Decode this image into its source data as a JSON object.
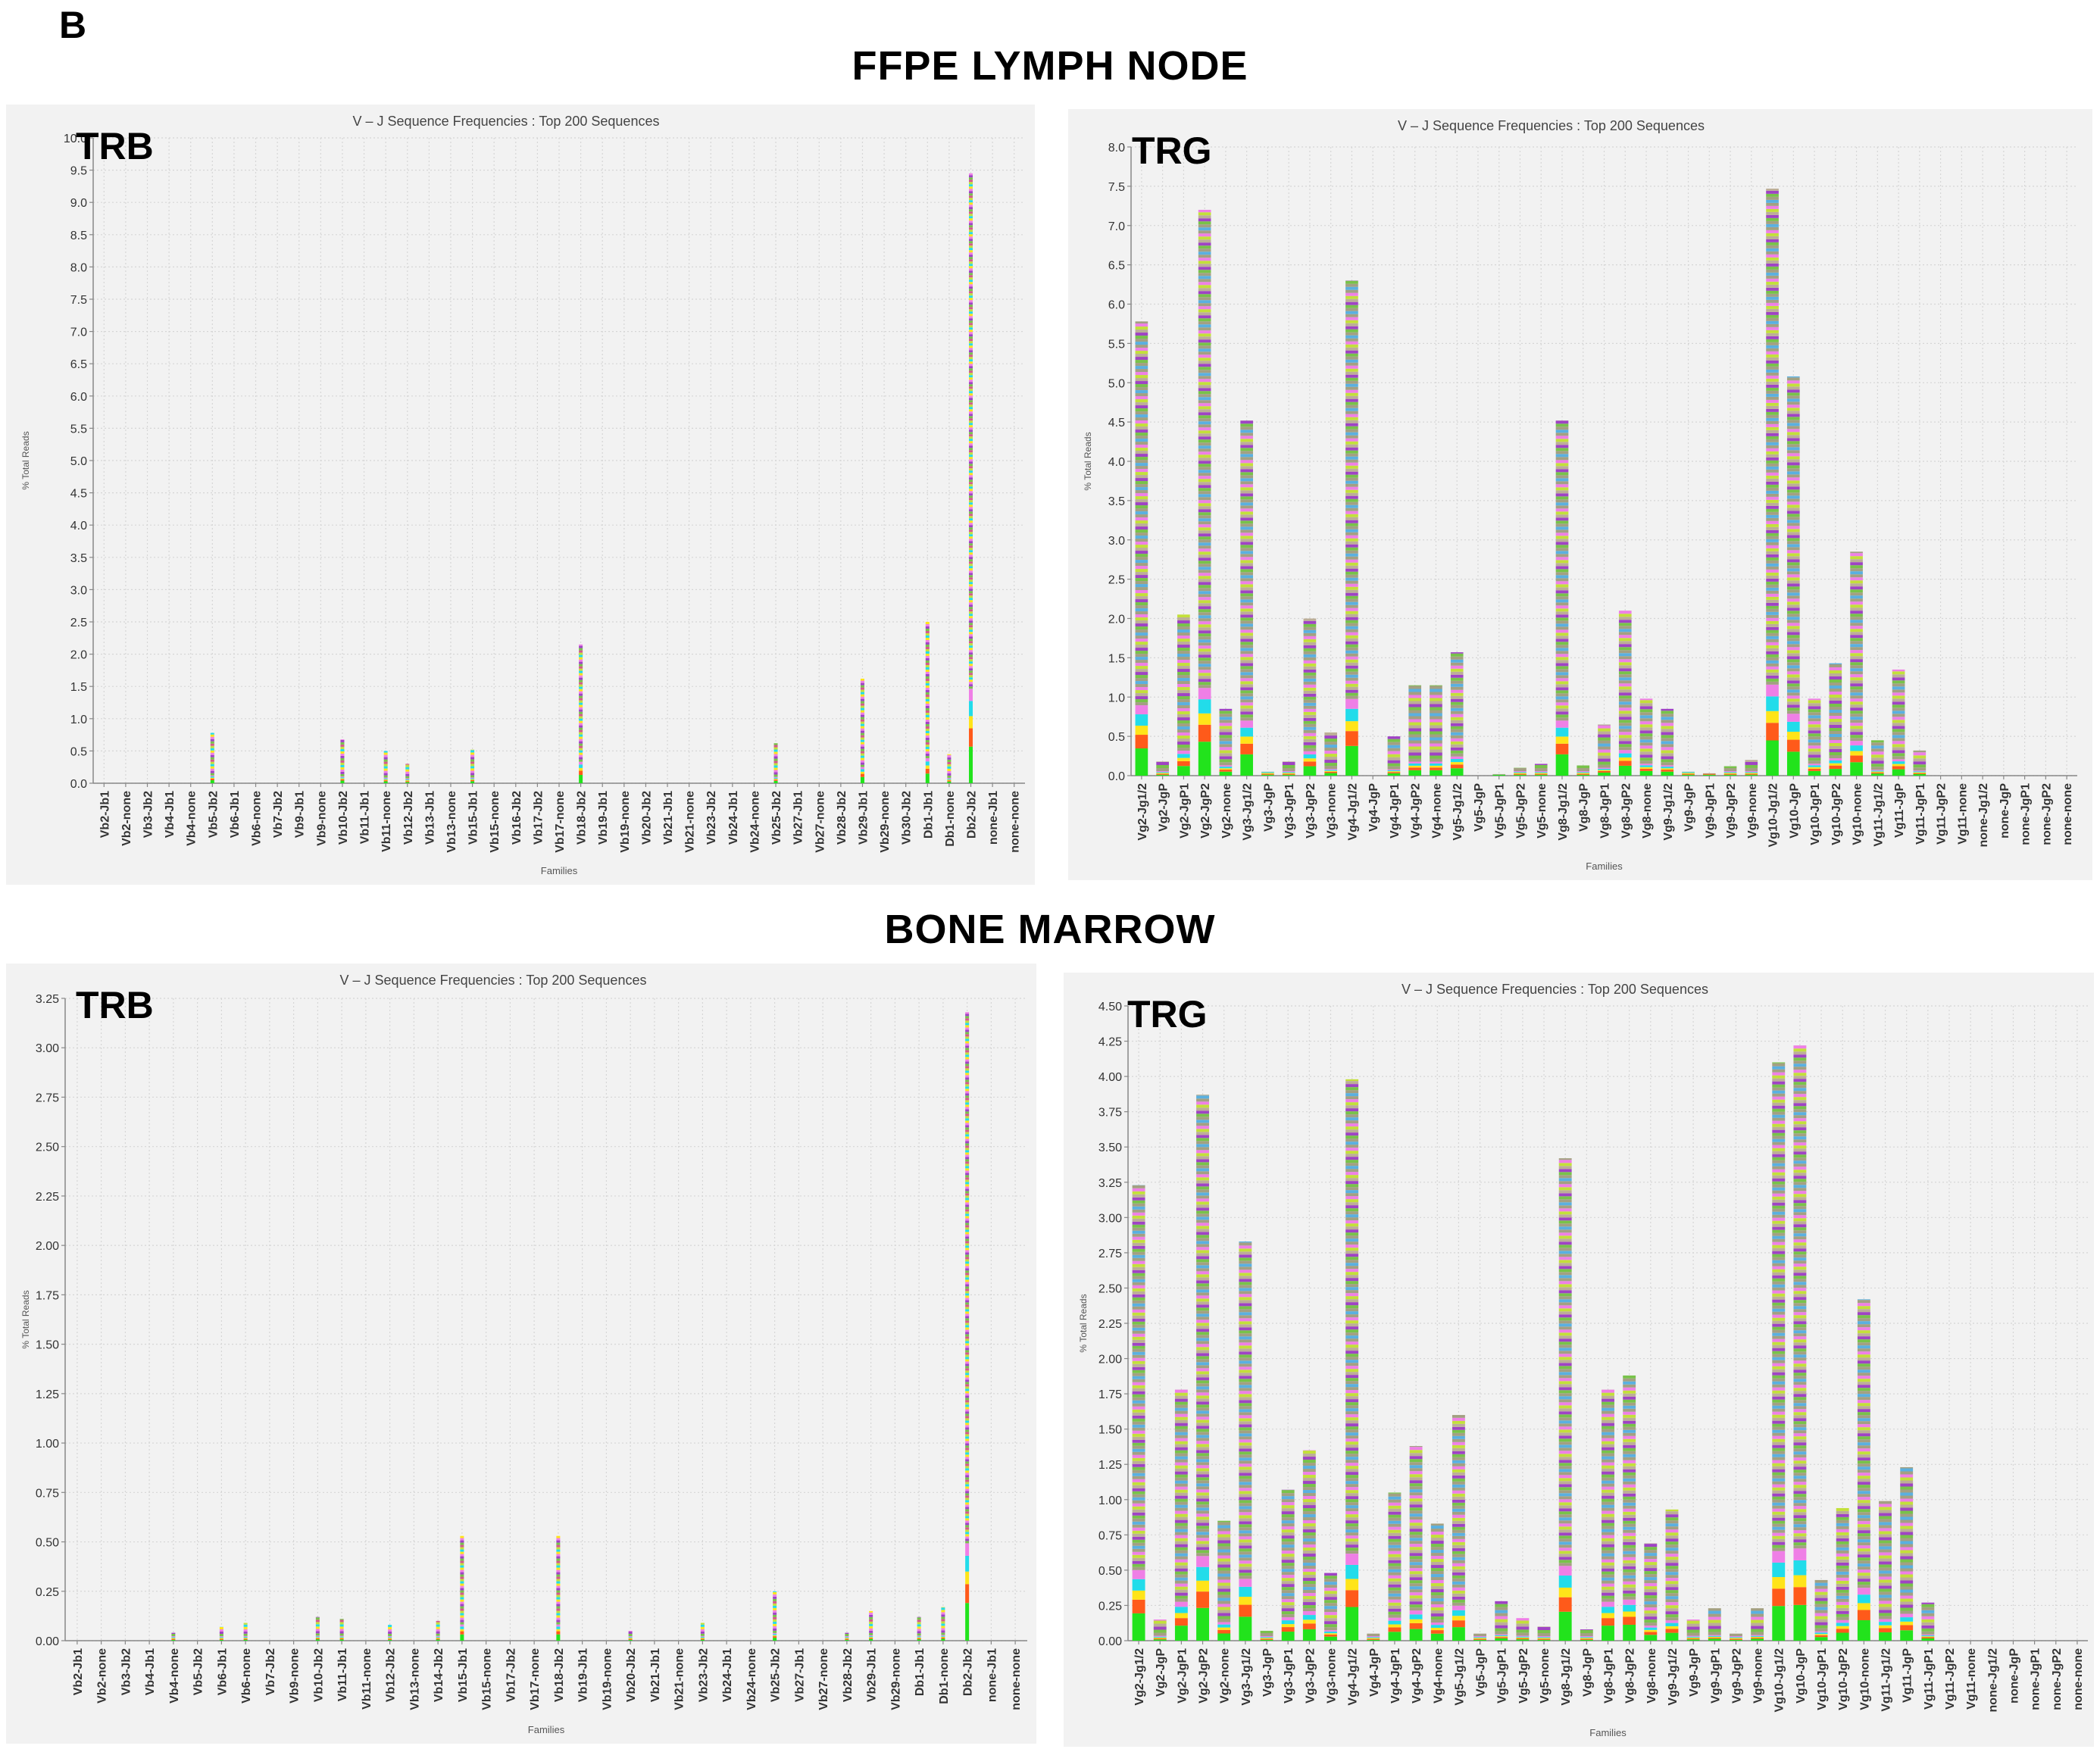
{
  "figure": {
    "label": "B",
    "sections": [
      "FFPE LYMPH NODE",
      "BONE MARROW"
    ]
  },
  "colors": {
    "panel_bg": "#f2f2f2",
    "grid": "#d6d6d6",
    "stack_palette": [
      "#22e31c",
      "#ff5a1a",
      "#ffe419",
      "#22dcea",
      "#ef7fe6",
      "#9f43c4",
      "#78c24a",
      "#c3e03a",
      "#a3a082",
      "#bcae98",
      "#d45a8a",
      "#5ab0e0"
    ]
  },
  "chart_data": [
    {
      "type": "bar",
      "stacked": true,
      "tag": "TRB",
      "title": "V – J Sequence Frequencies : Top 200 Sequences",
      "xlabel": "Families",
      "ylabel": "% Total Reads",
      "ylim": [
        0,
        10.0
      ],
      "yticks": [
        "0.0",
        "0.5",
        "1.0",
        "1.5",
        "2.0",
        "2.5",
        "3.0",
        "3.5",
        "4.0",
        "4.5",
        "5.0",
        "5.5",
        "6.0",
        "6.5",
        "7.0",
        "7.5",
        "8.0",
        "8.5",
        "9.0",
        "9.5",
        "10.0"
      ],
      "bar_style": "thin",
      "categories": [
        "Vb2-Jb1",
        "Vb2-none",
        "Vb3-Jb2",
        "Vb4-Jb1",
        "Vb4-none",
        "Vb5-Jb2",
        "Vb6-Jb1",
        "Vb6-none",
        "Vb7-Jb2",
        "Vb9-Jb1",
        "Vb9-none",
        "Vb10-Jb2",
        "Vb11-Jb1",
        "Vb11-none",
        "Vb12-Jb2",
        "Vb13-Jb1",
        "Vb13-none",
        "Vb15-Jb1",
        "Vb15-none",
        "Vb16-Jb2",
        "Vb17-Jb2",
        "Vb17-none",
        "Vb18-Jb2",
        "Vb19-Jb1",
        "Vb19-none",
        "Vb20-Jb2",
        "Vb21-Jb1",
        "Vb21-none",
        "Vb23-Jb2",
        "Vb24-Jb1",
        "Vb24-none",
        "Vb25-Jb2",
        "Vb27-Jb1",
        "Vb27-none",
        "Vb28-Jb2",
        "Vb29-Jb1",
        "Vb29-none",
        "Vb30-Jb2",
        "Db1-Jb1",
        "Db1-none",
        "Db2-Jb2",
        "none-Jb1",
        "none-none"
      ],
      "values": [
        0,
        0,
        0,
        0,
        0,
        0.78,
        0,
        0,
        0,
        0,
        0,
        0.68,
        0,
        0.5,
        0.3,
        0,
        0,
        0.52,
        0,
        0,
        0,
        0,
        2.15,
        0,
        0,
        0,
        0,
        0,
        0,
        0,
        0,
        0.62,
        0,
        0,
        0,
        1.62,
        0,
        0,
        2.5,
        0.45,
        9.45,
        0,
        0
      ]
    },
    {
      "type": "bar",
      "stacked": true,
      "tag": "TRG",
      "title": "V – J Sequence Frequencies : Top 200 Sequences",
      "xlabel": "Families",
      "ylabel": "% Total Reads",
      "ylim": [
        0,
        8.0
      ],
      "yticks": [
        "0.0",
        "0.5",
        "1.0",
        "1.5",
        "2.0",
        "2.5",
        "3.0",
        "3.5",
        "4.0",
        "4.5",
        "5.0",
        "5.5",
        "6.0",
        "6.5",
        "7.0",
        "7.5",
        "8.0"
      ],
      "bar_style": "wide",
      "categories": [
        "Vg2-Jg1/2",
        "Vg2-JgP",
        "Vg2-JgP1",
        "Vg2-JgP2",
        "Vg2-none",
        "Vg3-Jg1/2",
        "Vg3-JgP",
        "Vg3-JgP1",
        "Vg3-JgP2",
        "Vg3-none",
        "Vg4-Jg1/2",
        "Vg4-JgP",
        "Vg4-JgP1",
        "Vg4-JgP2",
        "Vg4-none",
        "Vg5-Jg1/2",
        "Vg5-JgP",
        "Vg5-JgP1",
        "Vg5-JgP2",
        "Vg5-none",
        "Vg8-Jg1/2",
        "Vg8-JgP",
        "Vg8-JgP1",
        "Vg8-JgP2",
        "Vg8-none",
        "Vg9-Jg1/2",
        "Vg9-JgP",
        "Vg9-JgP1",
        "Vg9-JgP2",
        "Vg9-none",
        "Vg10-Jg1/2",
        "Vg10-JgP",
        "Vg10-JgP1",
        "Vg10-JgP2",
        "Vg10-none",
        "Vg11-Jg1/2",
        "Vg11-JgP",
        "Vg11-JgP1",
        "Vg11-JgP2",
        "Vg11-none",
        "none-Jg1/2",
        "none-JgP",
        "none-JgP1",
        "none-JgP2",
        "none-none"
      ],
      "values": [
        5.78,
        0.18,
        2.05,
        7.2,
        0.85,
        4.52,
        0.05,
        0.18,
        2.0,
        0.55,
        6.3,
        0,
        0.5,
        1.15,
        1.15,
        1.57,
        0,
        0.02,
        0.1,
        0.15,
        4.52,
        0.13,
        0.65,
        2.1,
        0.98,
        0.85,
        0.05,
        0.03,
        0.12,
        0.2,
        7.47,
        5.08,
        0.98,
        1.43,
        2.85,
        0.45,
        1.35,
        0.32,
        0,
        0,
        0,
        0,
        0,
        0,
        0
      ]
    },
    {
      "type": "bar",
      "stacked": true,
      "tag": "TRB",
      "title": "V – J Sequence Frequencies : Top 200 Sequences",
      "xlabel": "Families",
      "ylabel": "% Total Reads",
      "ylim": [
        0,
        3.25
      ],
      "yticks": [
        "0.00",
        "0.25",
        "0.50",
        "0.75",
        "1.00",
        "1.25",
        "1.50",
        "1.75",
        "2.00",
        "2.25",
        "2.50",
        "2.75",
        "3.00",
        "3.25"
      ],
      "bar_style": "thin",
      "categories": [
        "Vb2-Jb1",
        "Vb2-none",
        "Vb3-Jb2",
        "Vb4-Jb1",
        "Vb4-none",
        "Vb5-Jb2",
        "Vb6-Jb1",
        "Vb6-none",
        "Vb7-Jb2",
        "Vb9-none",
        "Vb10-Jb2",
        "Vb11-Jb1",
        "Vb11-none",
        "Vb12-Jb2",
        "Vb13-none",
        "Vb14-Jb2",
        "Vb15-Jb1",
        "Vb15-none",
        "Vb17-Jb2",
        "Vb17-none",
        "Vb18-Jb2",
        "Vb19-Jb1",
        "Vb19-none",
        "Vb20-Jb2",
        "Vb21-Jb1",
        "Vb21-none",
        "Vb23-Jb2",
        "Vb24-Jb1",
        "Vb24-none",
        "Vb25-Jb2",
        "Vb27-Jb1",
        "Vb27-none",
        "Vb28-Jb2",
        "Vb29-Jb1",
        "Vb29-none",
        "Db1-Jb1",
        "Db1-none",
        "Db2-Jb2",
        "none-Jb1",
        "none-none"
      ],
      "values": [
        0,
        0,
        0,
        0,
        0.04,
        0,
        0.07,
        0.09,
        0,
        0,
        0.12,
        0.11,
        0,
        0.08,
        0,
        0.1,
        0.53,
        0,
        0,
        0,
        0.53,
        0,
        0,
        0.05,
        0,
        0,
        0.09,
        0,
        0,
        0.25,
        0,
        0,
        0.04,
        0.15,
        0,
        0.12,
        0.17,
        3.18,
        0,
        0
      ]
    },
    {
      "type": "bar",
      "stacked": true,
      "tag": "TRG",
      "title": "V – J Sequence Frequencies : Top 200 Sequences",
      "xlabel": "Families",
      "ylabel": "% Total Reads",
      "ylim": [
        0,
        4.5
      ],
      "yticks": [
        "0.00",
        "0.25",
        "0.50",
        "0.75",
        "1.00",
        "1.25",
        "1.50",
        "1.75",
        "2.00",
        "2.25",
        "2.50",
        "2.75",
        "3.00",
        "3.25",
        "3.50",
        "3.75",
        "4.00",
        "4.25",
        "4.50"
      ],
      "bar_style": "wide",
      "categories": [
        "Vg2-Jg1/2",
        "Vg2-JgP",
        "Vg2-JgP1",
        "Vg2-JgP2",
        "Vg2-none",
        "Vg3-Jg1/2",
        "Vg3-JgP",
        "Vg3-JgP1",
        "Vg3-JgP2",
        "Vg3-none",
        "Vg4-Jg1/2",
        "Vg4-JgP",
        "Vg4-JgP1",
        "Vg4-JgP2",
        "Vg4-none",
        "Vg5-Jg1/2",
        "Vg5-JgP",
        "Vg5-JgP1",
        "Vg5-JgP2",
        "Vg5-none",
        "Vg8-Jg1/2",
        "Vg8-JgP",
        "Vg8-JgP1",
        "Vg8-JgP2",
        "Vg8-none",
        "Vg9-Jg1/2",
        "Vg9-JgP",
        "Vg9-JgP1",
        "Vg9-JgP2",
        "Vg9-none",
        "Vg10-Jg1/2",
        "Vg10-JgP",
        "Vg10-JgP1",
        "Vg10-JgP2",
        "Vg10-none",
        "Vg11-Jg1/2",
        "Vg11-JgP",
        "Vg11-JgP1",
        "Vg11-JgP2",
        "Vg11-none",
        "none-Jg1/2",
        "none-JgP",
        "none-JgP1",
        "none-JgP2",
        "none-none"
      ],
      "values": [
        3.23,
        0.15,
        1.78,
        3.87,
        0.85,
        2.83,
        0.07,
        1.07,
        1.35,
        0.48,
        3.98,
        0.05,
        1.05,
        1.38,
        0.83,
        1.6,
        0.05,
        0.28,
        0.16,
        0.1,
        3.42,
        0.08,
        1.78,
        1.88,
        0.69,
        0.93,
        0.15,
        0.23,
        0.05,
        0.23,
        4.1,
        4.22,
        0.43,
        0.94,
        2.42,
        0.99,
        1.23,
        0.27,
        0,
        0,
        0,
        0,
        0,
        0,
        0
      ]
    }
  ]
}
